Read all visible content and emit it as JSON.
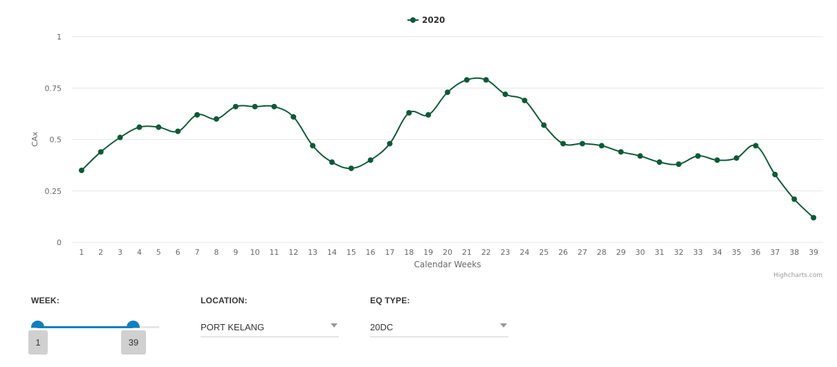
{
  "chart_data": {
    "type": "line",
    "title": "",
    "xlabel": "Calendar Weeks",
    "ylabel": "CAx",
    "categories": [
      "1",
      "2",
      "3",
      "4",
      "5",
      "6",
      "7",
      "8",
      "9",
      "10",
      "11",
      "12",
      "13",
      "14",
      "15",
      "16",
      "17",
      "18",
      "19",
      "20",
      "21",
      "22",
      "23",
      "24",
      "25",
      "26",
      "27",
      "28",
      "29",
      "30",
      "31",
      "32",
      "33",
      "34",
      "35",
      "36",
      "37",
      "38",
      "39"
    ],
    "series": [
      {
        "name": "2020",
        "color": "#0b5a36",
        "values": [
          0.35,
          0.44,
          0.51,
          0.56,
          0.56,
          0.54,
          0.62,
          0.6,
          0.66,
          0.66,
          0.66,
          0.61,
          0.47,
          0.39,
          0.36,
          0.4,
          0.48,
          0.63,
          0.62,
          0.73,
          0.79,
          0.79,
          0.72,
          0.69,
          0.57,
          0.48,
          0.48,
          0.47,
          0.44,
          0.42,
          0.39,
          0.38,
          0.42,
          0.4,
          0.41,
          0.47,
          0.33,
          0.21,
          0.12
        ]
      }
    ],
    "ylim": [
      0,
      1
    ],
    "yticks": [
      "0",
      "0.25",
      "0.5",
      "0.75",
      "1"
    ],
    "grid": true,
    "legend": "top-center",
    "credits": "Highcharts.com"
  },
  "filters": {
    "week": {
      "label": "WEEK:",
      "min": 1,
      "max": 39,
      "low": 1,
      "high": 39,
      "low_label": "1",
      "high_label": "39",
      "accent": "#0e7fc1"
    },
    "location": {
      "label": "LOCATION:",
      "value": "PORT KELANG"
    },
    "eq_type": {
      "label": "EQ TYPE:",
      "value": "20DC"
    }
  }
}
